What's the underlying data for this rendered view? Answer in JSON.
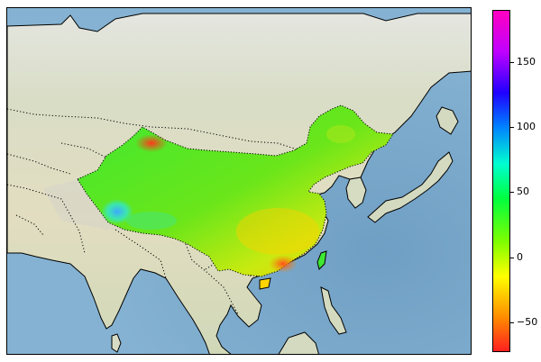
{
  "colorbar": {
    "ticks": [
      {
        "value": 150,
        "label": "150"
      },
      {
        "value": 100,
        "label": "100"
      },
      {
        "value": 50,
        "label": "50"
      },
      {
        "value": 0,
        "label": "0"
      },
      {
        "value": -50,
        "label": "−50"
      }
    ],
    "range": [
      -73,
      190
    ],
    "colormap": "gist_rainbow_r"
  },
  "colors": {
    "ocean": "#7faecf",
    "land": "#d9dcc4",
    "coastline": "#000000"
  }
}
